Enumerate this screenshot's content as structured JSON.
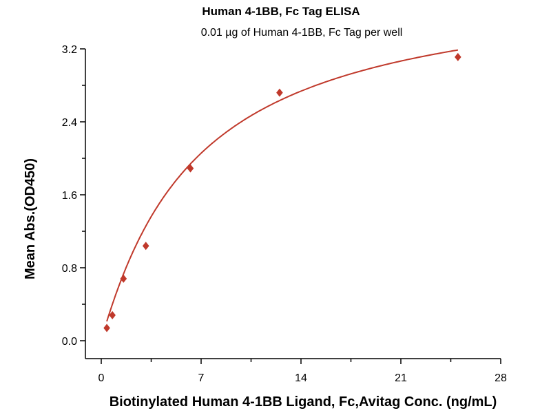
{
  "chart_data": {
    "type": "scatter",
    "title": "Human 4-1BB, Fc Tag ELISA",
    "subtitle": "0.01 µg of Human 4-1BB, Fc Tag per well",
    "xlabel": "Biotinylated Human 4-1BB Ligand, Fc,Avitag Conc. (ng/mL)",
    "ylabel": "Mean Abs.(OD450)",
    "xlim": [
      0,
      28
    ],
    "ylim": [
      0,
      3.2
    ],
    "xticks": [
      "0",
      "7",
      "14",
      "21",
      "28"
    ],
    "yticks": [
      "0.0",
      "0.8",
      "1.6",
      "2.4",
      "3.2"
    ],
    "grid": false,
    "series": [
      {
        "name": "Human 4-1BB, Fc Tag",
        "color": "#c0392b",
        "marker": "diamond",
        "fit": "curve",
        "x": [
          0.39,
          0.78,
          1.56,
          3.125,
          6.25,
          12.5,
          25
        ],
        "y": [
          0.14,
          0.28,
          0.68,
          1.04,
          1.89,
          2.72,
          3.11
        ]
      }
    ]
  }
}
